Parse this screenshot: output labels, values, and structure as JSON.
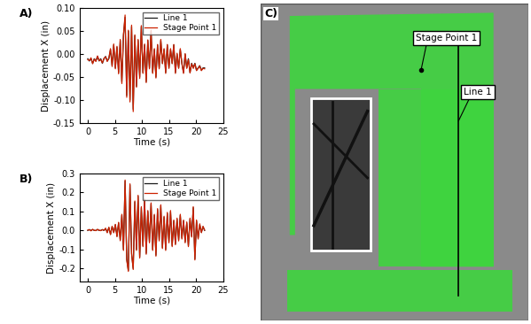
{
  "chart_data": [
    {
      "type": "line",
      "title": "A)",
      "x_label": "Time (s)",
      "y_label": "Displacement X (in)",
      "x": [
        0,
        0.3,
        0.6,
        0.9,
        1.2,
        1.5,
        1.8,
        2.1,
        2.4,
        2.7,
        3.0,
        3.3,
        3.6,
        3.9,
        4.2,
        4.5,
        4.8,
        5.1,
        5.4,
        5.7,
        6.0,
        6.3,
        6.6,
        6.9,
        7.2,
        7.5,
        7.8,
        8.1,
        8.4,
        8.7,
        9.0,
        9.3,
        9.6,
        9.9,
        10.2,
        10.5,
        10.8,
        11.1,
        11.4,
        11.7,
        12.0,
        12.3,
        12.6,
        12.9,
        13.2,
        13.5,
        13.8,
        14.1,
        14.4,
        14.7,
        15.0,
        15.3,
        15.6,
        15.9,
        16.2,
        16.5,
        16.8,
        17.1,
        17.4,
        17.7,
        18.0,
        18.3,
        18.6,
        18.9,
        19.2,
        19.5,
        19.8,
        20.1,
        20.4,
        20.7,
        21.0,
        21.3,
        21.6
      ],
      "series": [
        {
          "name": "Line 1",
          "color": "#1a1a1a",
          "values": [
            -0.01,
            -0.015,
            -0.01,
            -0.02,
            -0.01,
            -0.015,
            -0.005,
            -0.015,
            -0.01,
            -0.02,
            -0.01,
            -0.005,
            -0.015,
            -0.01,
            0.01,
            -0.025,
            0.02,
            -0.03,
            0.015,
            -0.04,
            0.03,
            -0.06,
            0.04,
            0.08,
            -0.09,
            0.05,
            -0.1,
            0.06,
            -0.12,
            0.04,
            -0.07,
            0.03,
            -0.05,
            0.06,
            -0.04,
            0.02,
            -0.06,
            0.03,
            -0.03,
            0.05,
            -0.04,
            0.01,
            -0.05,
            0.02,
            -0.03,
            0.03,
            -0.02,
            0.01,
            -0.04,
            0.02,
            -0.03,
            0.01,
            -0.02,
            0.02,
            -0.04,
            0.0,
            -0.03,
            0.01,
            -0.02,
            -0.04,
            0.0,
            -0.03,
            -0.01,
            -0.04,
            -0.02,
            -0.03,
            -0.02,
            -0.035,
            -0.03,
            -0.025,
            -0.035,
            -0.03,
            -0.03
          ]
        },
        {
          "name": "Stage Point 1",
          "color": "#cc2200",
          "values": [
            -0.012,
            -0.014,
            -0.008,
            -0.021,
            -0.011,
            -0.016,
            -0.004,
            -0.014,
            -0.012,
            -0.019,
            -0.009,
            -0.006,
            -0.016,
            -0.008,
            0.012,
            -0.027,
            0.022,
            -0.032,
            0.017,
            -0.043,
            0.032,
            -0.064,
            0.043,
            0.085,
            -0.094,
            0.052,
            -0.104,
            0.063,
            -0.125,
            0.042,
            -0.072,
            0.032,
            -0.053,
            0.062,
            -0.042,
            0.022,
            -0.062,
            0.031,
            -0.032,
            0.052,
            -0.042,
            0.012,
            -0.052,
            0.021,
            -0.032,
            0.032,
            -0.021,
            0.012,
            -0.042,
            0.021,
            -0.031,
            0.012,
            -0.021,
            0.021,
            -0.042,
            0.002,
            -0.031,
            0.012,
            -0.021,
            -0.042,
            0.001,
            -0.031,
            -0.012,
            -0.041,
            -0.021,
            -0.031,
            -0.021,
            -0.036,
            -0.031,
            -0.026,
            -0.036,
            -0.031,
            -0.032
          ]
        }
      ],
      "xlim": [
        -1.5,
        25
      ],
      "xticks": [
        0,
        5,
        10,
        15,
        20,
        25
      ],
      "ylim": [
        -0.15,
        0.1
      ],
      "yticks": [
        -0.15,
        {
          "value": -0.1,
          "label": "-0.10"
        },
        -0.05,
        {
          "value": 0.0,
          "label": "0.00"
        },
        0.05,
        {
          "value": 0.1,
          "label": "0.10"
        }
      ],
      "legend": "upper right",
      "grid": false
    },
    {
      "type": "line",
      "title": "B)",
      "x_label": "Time (s)",
      "y_label": "Displacement X (in)",
      "x": [
        0,
        0.3,
        0.6,
        0.9,
        1.2,
        1.5,
        1.8,
        2.1,
        2.4,
        2.7,
        3.0,
        3.3,
        3.6,
        3.9,
        4.2,
        4.5,
        4.8,
        5.1,
        5.4,
        5.7,
        6.0,
        6.3,
        6.6,
        6.9,
        7.2,
        7.5,
        7.8,
        8.1,
        8.4,
        8.7,
        9.0,
        9.3,
        9.6,
        9.9,
        10.2,
        10.5,
        10.8,
        11.1,
        11.4,
        11.7,
        12.0,
        12.3,
        12.6,
        12.9,
        13.2,
        13.5,
        13.8,
        14.1,
        14.4,
        14.7,
        15.0,
        15.3,
        15.6,
        15.9,
        16.2,
        16.5,
        16.8,
        17.1,
        17.4,
        17.7,
        18.0,
        18.3,
        18.6,
        18.9,
        19.2,
        19.5,
        19.8,
        20.1,
        20.4,
        20.7,
        21.0,
        21.3,
        21.6
      ],
      "series": [
        {
          "name": "Line 1",
          "color": "#1a1a1a",
          "values": [
            0.0,
            0.005,
            0.0,
            0.005,
            0.0,
            0.0,
            0.005,
            0.0,
            0.0,
            0.005,
            0.0,
            0.01,
            -0.01,
            0.015,
            -0.02,
            0.02,
            -0.01,
            0.03,
            -0.03,
            0.04,
            -0.05,
            0.08,
            -0.1,
            0.26,
            -0.15,
            -0.21,
            0.24,
            -0.12,
            -0.2,
            0.15,
            -0.1,
            0.18,
            -0.14,
            0.12,
            -0.08,
            0.16,
            -0.12,
            0.1,
            -0.06,
            0.14,
            -0.1,
            0.08,
            -0.13,
            0.11,
            -0.05,
            0.13,
            -0.09,
            0.07,
            -0.1,
            0.09,
            -0.06,
            0.1,
            -0.08,
            0.05,
            -0.07,
            0.06,
            -0.05,
            0.08,
            -0.04,
            0.05,
            -0.06,
            0.04,
            -0.08,
            0.06,
            -0.03,
            0.12,
            -0.15,
            0.05,
            -0.04,
            0.03,
            -0.01,
            0.02,
            0.0
          ]
        },
        {
          "name": "Stage Point 1",
          "color": "#cc2200",
          "values": [
            0.002,
            0.004,
            -0.002,
            0.006,
            0.001,
            -0.001,
            0.006,
            0.001,
            -0.001,
            0.004,
            0.001,
            0.012,
            -0.012,
            0.017,
            -0.022,
            0.022,
            -0.012,
            0.032,
            -0.033,
            0.043,
            -0.054,
            0.085,
            -0.105,
            0.265,
            -0.155,
            -0.215,
            0.245,
            -0.125,
            -0.205,
            0.155,
            -0.105,
            0.185,
            -0.145,
            0.125,
            -0.085,
            0.165,
            -0.125,
            0.105,
            -0.065,
            0.145,
            -0.105,
            0.085,
            -0.135,
            0.115,
            -0.055,
            0.135,
            -0.095,
            0.075,
            -0.105,
            0.095,
            -0.065,
            0.105,
            -0.085,
            0.055,
            -0.075,
            0.065,
            -0.055,
            0.085,
            -0.045,
            0.055,
            -0.065,
            0.045,
            -0.085,
            0.065,
            -0.035,
            0.125,
            -0.155,
            0.055,
            -0.045,
            0.035,
            -0.012,
            0.022,
            0.002
          ]
        }
      ],
      "xlim": [
        -1.5,
        25
      ],
      "xticks": [
        0,
        5,
        10,
        15,
        20,
        25
      ],
      "ylim": [
        -0.27,
        0.3
      ],
      "yticks": [
        -0.2,
        -0.1,
        0.0,
        0.1,
        0.2,
        0.3
      ],
      "legend": "upper right",
      "grid": false
    }
  ],
  "panel_c": {
    "label": "C)",
    "annotations": [
      "Stage Point 1",
      "Line 1"
    ]
  }
}
